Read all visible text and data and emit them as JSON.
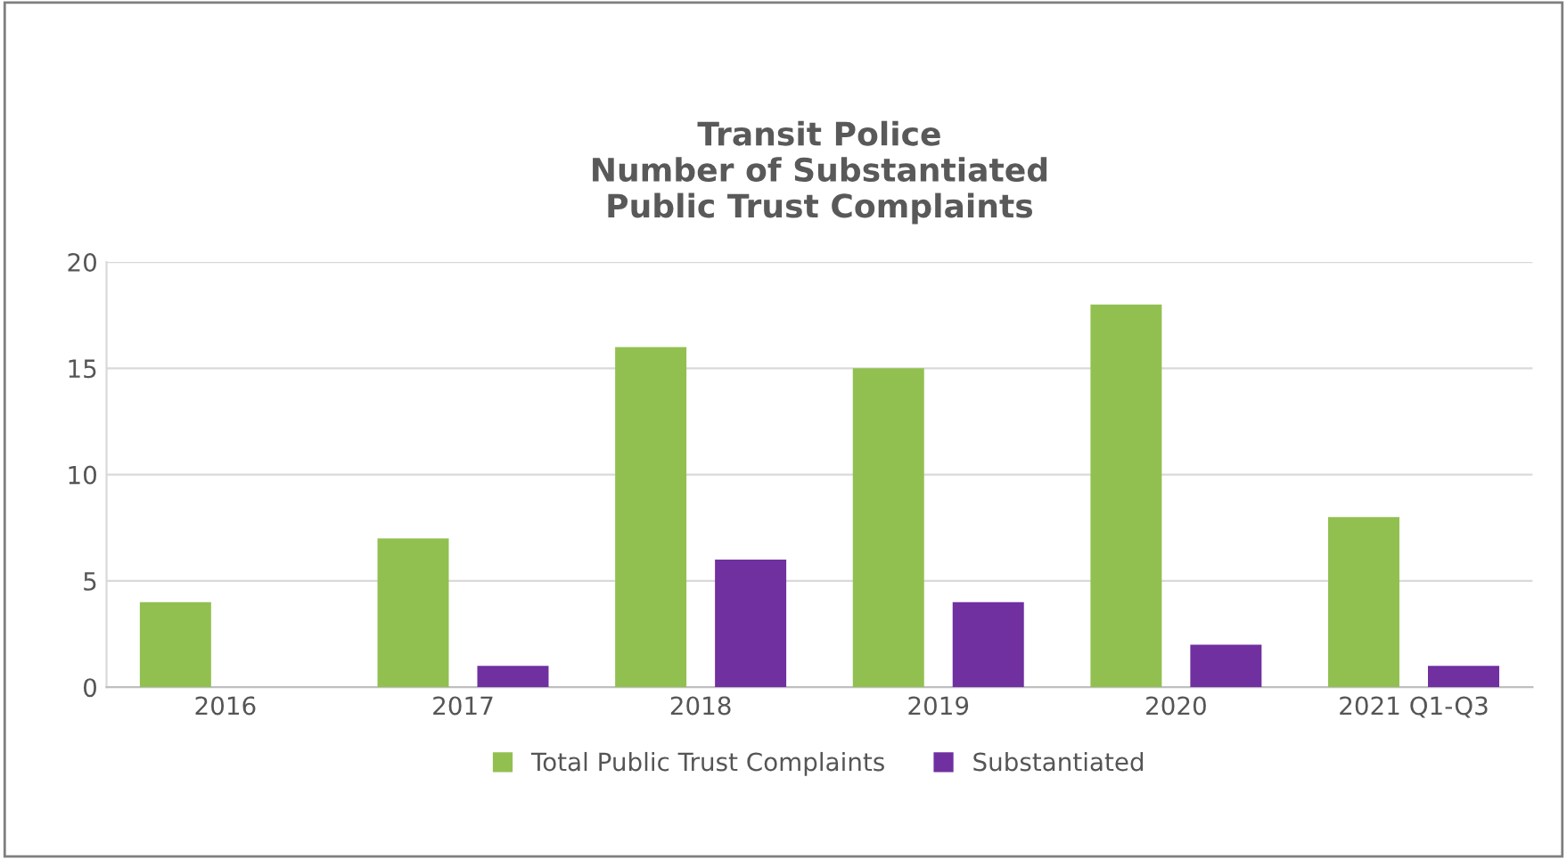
{
  "chart_data": {
    "type": "bar",
    "title": "Transit Police\nNumber of Substantiated\nPublic Trust Complaints",
    "categories": [
      "2016",
      "2017",
      "2018",
      "2019",
      "2020",
      "2021 Q1-Q3"
    ],
    "series": [
      {
        "name": "Total Public Trust Complaints",
        "color": "#92c050",
        "values": [
          4,
          7,
          16,
          15,
          18,
          8
        ]
      },
      {
        "name": "Substantiated",
        "color": "#7030a0",
        "values": [
          0,
          1,
          6,
          4,
          2,
          1
        ]
      }
    ],
    "ylim": [
      0,
      20
    ],
    "yticks": [
      0,
      5,
      10,
      15,
      20
    ],
    "grid": "y",
    "legend": "bottom"
  }
}
